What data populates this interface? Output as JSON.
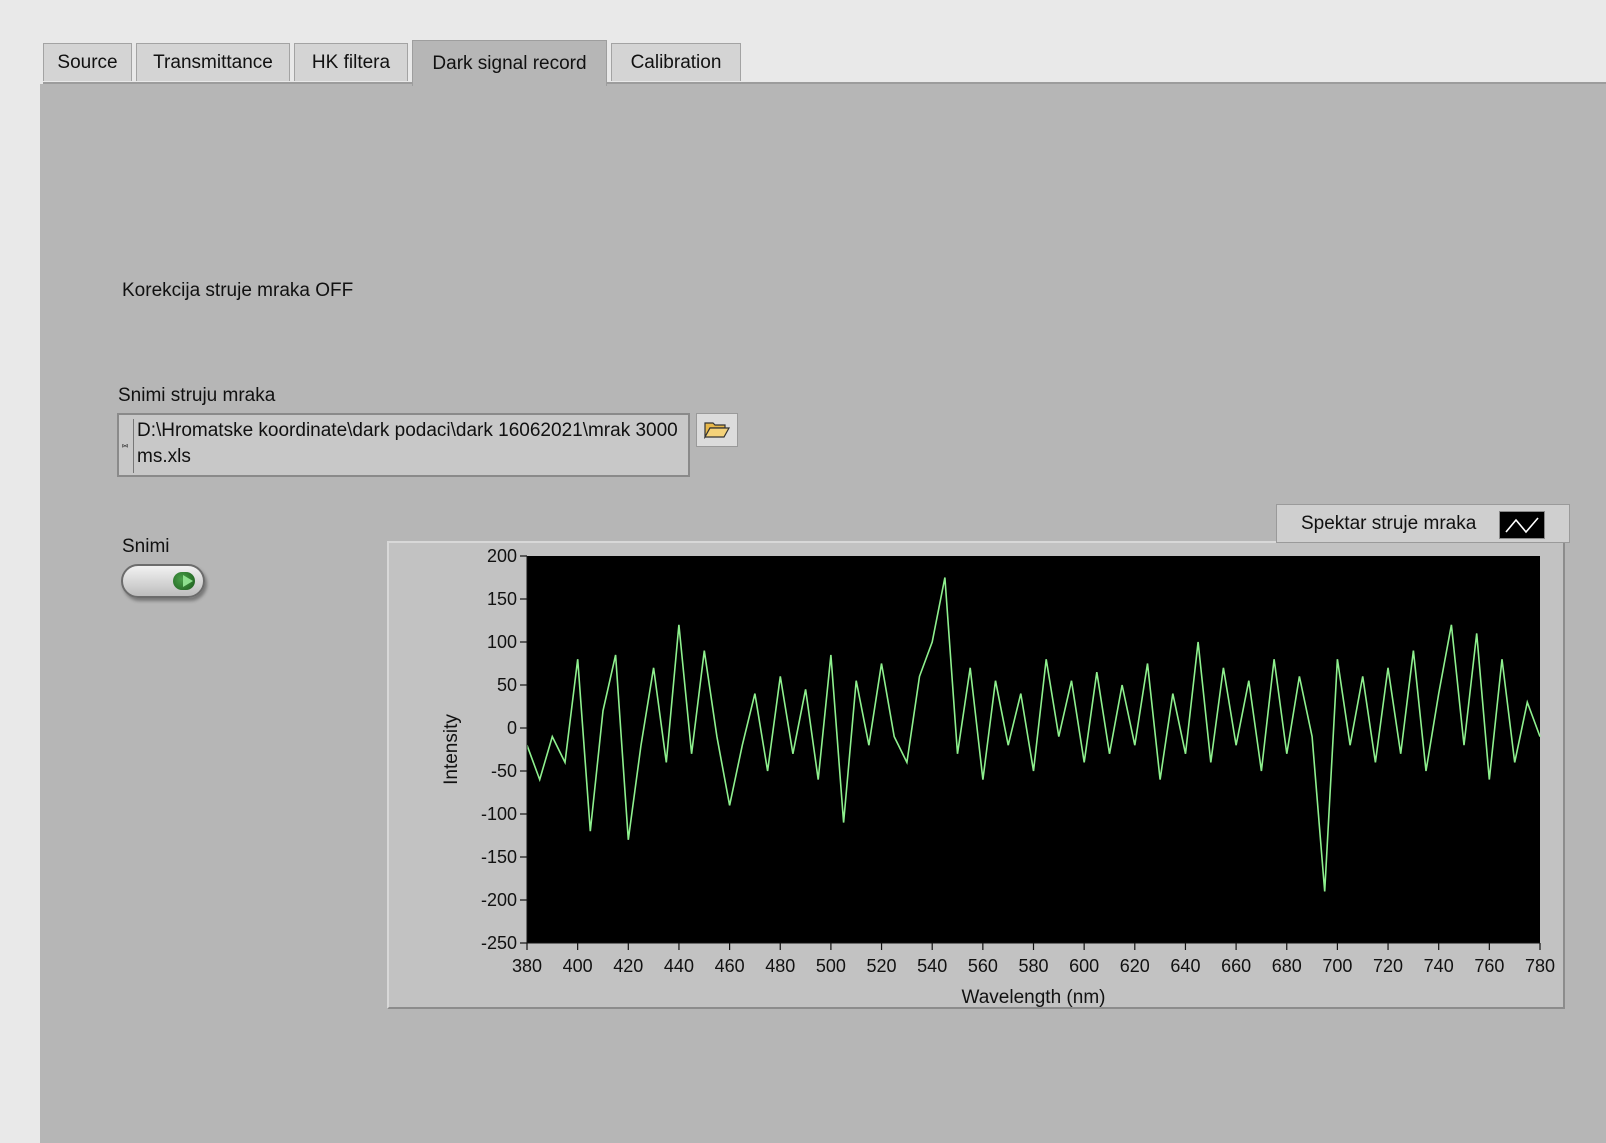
{
  "tabs": [
    {
      "label": "Source",
      "active": false
    },
    {
      "label": "Transmittance",
      "active": false
    },
    {
      "label": "HK filtera",
      "active": false
    },
    {
      "label": "Dark signal record",
      "active": true
    },
    {
      "label": "Calibration",
      "active": false
    }
  ],
  "status_text": "Korekcija struje mraka OFF",
  "path_control": {
    "label": "Snimi struju mraka",
    "value": "D:\\Hromatske koordinate\\dark podaci\\dark 16062021\\mrak 3000ms.xls",
    "browse_icon": "folder-open-icon"
  },
  "record_button": {
    "label": "Snimi",
    "icon": "play-icon"
  },
  "colors": {
    "plot_bg": "#000000",
    "trace": "#8ef08e",
    "panel": "#b6b6b6"
  },
  "chart_data": {
    "type": "line",
    "title": "",
    "xlabel": "Wavelength (nm)",
    "ylabel": "Intensity",
    "xlim": [
      380,
      780
    ],
    "ylim": [
      -250,
      200
    ],
    "x_ticks": [
      "380",
      "400",
      "420",
      "440",
      "460",
      "480",
      "500",
      "520",
      "540",
      "560",
      "580",
      "600",
      "620",
      "640",
      "660",
      "680",
      "700",
      "720",
      "740",
      "760",
      "780"
    ],
    "y_ticks": [
      "200",
      "150",
      "100",
      "50",
      "0",
      "-50",
      "-100",
      "-150",
      "-200",
      "-250"
    ],
    "legend": {
      "position": "top-right"
    },
    "series": [
      {
        "name": "Spektar struje mraka",
        "color": "#8ef08e",
        "x": [
          380,
          385,
          390,
          395,
          400,
          405,
          410,
          415,
          420,
          425,
          430,
          435,
          440,
          445,
          450,
          455,
          460,
          465,
          470,
          475,
          480,
          485,
          490,
          495,
          500,
          505,
          510,
          515,
          520,
          525,
          530,
          535,
          540,
          545,
          550,
          555,
          560,
          565,
          570,
          575,
          580,
          585,
          590,
          595,
          600,
          605,
          610,
          615,
          620,
          625,
          630,
          635,
          640,
          645,
          650,
          655,
          660,
          665,
          670,
          675,
          680,
          685,
          690,
          695,
          700,
          705,
          710,
          715,
          720,
          725,
          730,
          735,
          740,
          745,
          750,
          755,
          760,
          765,
          770,
          775,
          780
        ],
        "y": [
          -20,
          -60,
          -10,
          -40,
          80,
          -120,
          20,
          85,
          -130,
          -20,
          70,
          -40,
          120,
          -30,
          90,
          -10,
          -90,
          -20,
          40,
          -50,
          60,
          -30,
          45,
          -60,
          85,
          -110,
          55,
          -20,
          75,
          -10,
          -40,
          60,
          100,
          175,
          -30,
          70,
          -60,
          55,
          -20,
          40,
          -50,
          80,
          -10,
          55,
          -40,
          65,
          -30,
          50,
          -20,
          75,
          -60,
          40,
          -30,
          100,
          -40,
          70,
          -20,
          55,
          -50,
          80,
          -30,
          60,
          -10,
          -190,
          80,
          -20,
          60,
          -40,
          70,
          -30,
          90,
          -50,
          40,
          120,
          -20,
          110,
          -60,
          80,
          -40,
          30,
          -10
        ]
      }
    ]
  }
}
